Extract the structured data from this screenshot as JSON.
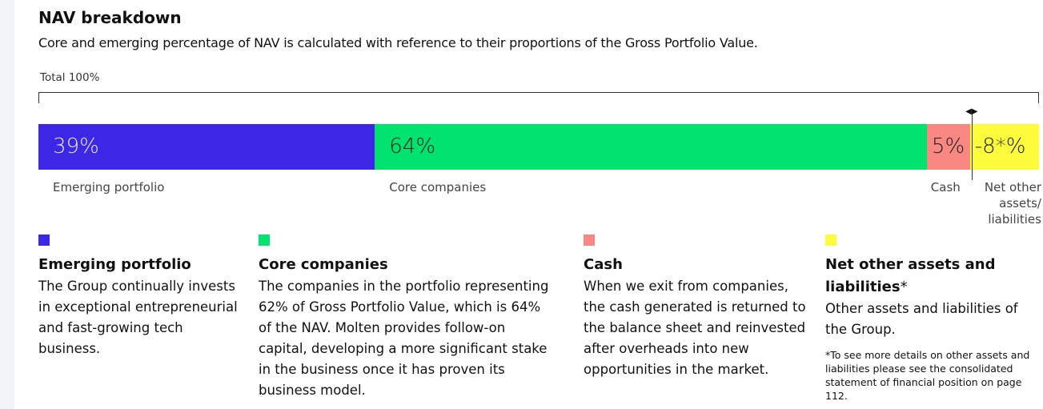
{
  "chart_data": {
    "type": "bar",
    "title": "NAV breakdown",
    "subtitle": "Core and emerging percentage of NAV is calculated with reference to their proportions of the Gross Portfolio Value.",
    "total_label": "Total 100%",
    "categories": [
      "Emerging portfolio",
      "Core companies",
      "Cash",
      "Net other assets/ liabilities"
    ],
    "values": [
      39,
      64,
      5,
      -8
    ],
    "value_labels": [
      "39%",
      "64%",
      "5%",
      "-8*%"
    ],
    "colors": [
      "#3c28e4",
      "#00e36f",
      "#f98883",
      "#fdfc3c"
    ]
  },
  "descriptions": [
    {
      "title": "Emerging portfolio",
      "text": "The Group continually invests in exceptional entrepreneurial and fast-growing tech business."
    },
    {
      "title": "Core companies",
      "text": "The companies in the portfolio representing 62% of Gross Portfolio Value, which is 64% of the NAV. Molten provides follow-on capital, developing a more significant stake in the business once it has proven its business model."
    },
    {
      "title": "Cash",
      "text": "When we exit from companies, the cash generated is returned to the balance sheet and reinvested after overheads into new opportunities in the market."
    },
    {
      "title": "Net other assets and liabilities",
      "title_mark": "*",
      "text": "Other assets and liabilities of the Group.",
      "footnote": "*To see more details on other assets and liabilities please see the consolidated statement of financial position on page 112."
    }
  ]
}
